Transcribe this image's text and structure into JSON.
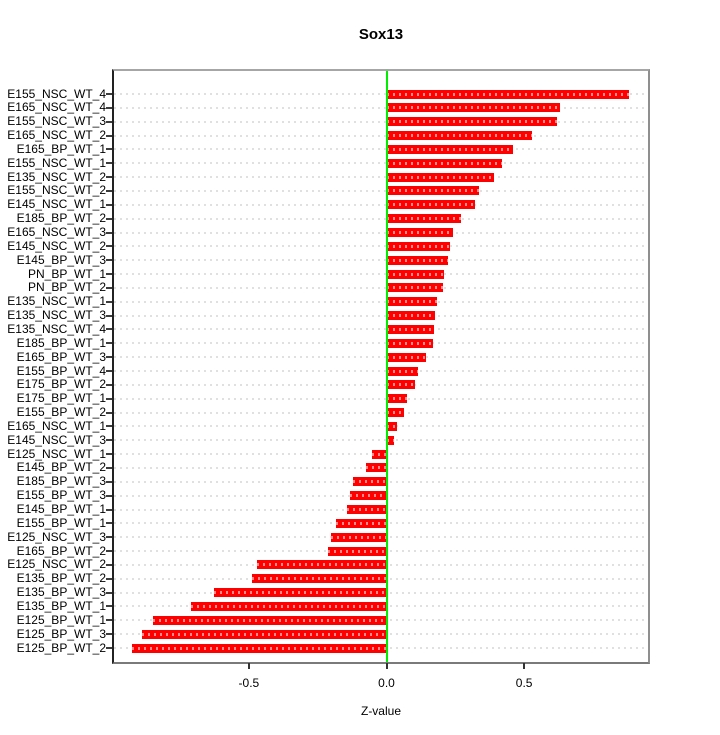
{
  "chart_data": {
    "type": "bar",
    "orientation": "horizontal",
    "title": "Sox13",
    "xlabel": "Z-value",
    "grid": true,
    "legend": false,
    "xlim": [
      -0.99,
      0.95
    ],
    "xticks": [
      -0.5,
      0.0,
      0.5
    ],
    "xtick_labels": [
      "-0.5",
      "0.0",
      "0.5"
    ],
    "zero_line_x": 0,
    "categories": [
      "E155_NSC_WT_4",
      "E165_NSC_WT_4",
      "E155_NSC_WT_3",
      "E165_NSC_WT_2",
      "E165_BP_WT_1",
      "E155_NSC_WT_1",
      "E135_NSC_WT_2",
      "E155_NSC_WT_2",
      "E145_NSC_WT_1",
      "E185_BP_WT_2",
      "E165_NSC_WT_3",
      "E145_NSC_WT_2",
      "E145_BP_WT_3",
      "PN_BP_WT_1",
      "PN_BP_WT_2",
      "E135_NSC_WT_1",
      "E135_NSC_WT_3",
      "E135_NSC_WT_4",
      "E185_BP_WT_1",
      "E165_BP_WT_3",
      "E155_BP_WT_4",
      "E175_BP_WT_2",
      "E175_BP_WT_1",
      "E155_BP_WT_2",
      "E165_NSC_WT_1",
      "E145_NSC_WT_3",
      "E125_NSC_WT_1",
      "E145_BP_WT_2",
      "E185_BP_WT_3",
      "E155_BP_WT_3",
      "E145_BP_WT_1",
      "E155_BP_WT_1",
      "E125_NSC_WT_3",
      "E165_BP_WT_2",
      "E125_NSC_WT_2",
      "E135_BP_WT_2",
      "E135_BP_WT_3",
      "E135_BP_WT_1",
      "E125_BP_WT_1",
      "E125_BP_WT_3",
      "E125_BP_WT_2"
    ],
    "values": [
      0.88,
      0.63,
      0.62,
      0.53,
      0.46,
      0.42,
      0.39,
      0.335,
      0.32,
      0.27,
      0.24,
      0.23,
      0.225,
      0.21,
      0.207,
      0.185,
      0.178,
      0.174,
      0.168,
      0.142,
      0.113,
      0.102,
      0.074,
      0.064,
      0.038,
      0.026,
      -0.051,
      -0.076,
      -0.12,
      -0.132,
      -0.143,
      -0.183,
      -0.203,
      -0.213,
      -0.471,
      -0.487,
      -0.626,
      -0.712,
      -0.849,
      -0.889,
      -0.925
    ],
    "colors": {
      "bar": "#ff0000",
      "bar_stripe": "rgba(255,255,255,0.55)",
      "zero_line": "#00ee00",
      "grid": "#e0e0e0",
      "frame": "#8f8f8f",
      "tick": "#333333",
      "text": "#000000"
    }
  }
}
